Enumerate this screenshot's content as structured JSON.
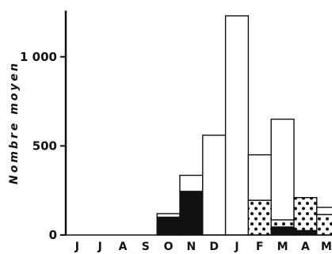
{
  "chart_data": {
    "type": "bar",
    "title": "",
    "xlabel": "",
    "ylabel": "Nombre moyen",
    "ylim": [
      0,
      1250
    ],
    "yticks": [
      {
        "value": 0,
        "label": "0"
      },
      {
        "value": 500,
        "label": "500"
      },
      {
        "value": 1000,
        "label": "1 000"
      }
    ],
    "categories": [
      "J",
      "J",
      "A",
      "S",
      "O",
      "N",
      "D",
      "J",
      "F",
      "M",
      "A",
      "M"
    ],
    "series": [
      {
        "pattern": "solid",
        "values": [
          0,
          0,
          0,
          0,
          100,
          245,
          0,
          0,
          0,
          45,
          25,
          0
        ]
      },
      {
        "pattern": "dotted",
        "values": [
          0,
          0,
          0,
          0,
          0,
          0,
          0,
          0,
          195,
          40,
          185,
          115
        ]
      },
      {
        "pattern": "open",
        "values": [
          0,
          0,
          0,
          0,
          20,
          90,
          560,
          1230,
          255,
          565,
          0,
          40
        ]
      }
    ],
    "grid": false,
    "colors": {
      "solid": "#111111",
      "open": "#ffffff",
      "outline": "#111111"
    }
  }
}
